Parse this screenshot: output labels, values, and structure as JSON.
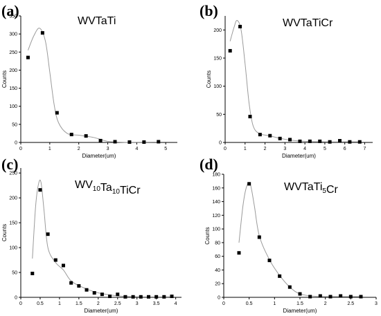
{
  "chart_data": [
    {
      "type": "scatter",
      "panel_label": "(a)",
      "title": "WVTaTi",
      "title_parts": [
        {
          "t": "WVTaTi",
          "sub": false
        }
      ],
      "xlabel": "Diameter(um)",
      "ylabel": "Counts",
      "xlim": [
        0,
        5.4
      ],
      "ylim": [
        0,
        350
      ],
      "xticks": [
        0,
        1,
        2,
        3,
        4,
        5
      ],
      "yticks": [
        0,
        50,
        100,
        150,
        200,
        250,
        300,
        350
      ],
      "points": [
        [
          0.25,
          235
        ],
        [
          0.75,
          303
        ],
        [
          1.25,
          82
        ],
        [
          1.75,
          22
        ],
        [
          2.25,
          18
        ],
        [
          2.75,
          5
        ],
        [
          3.25,
          2
        ],
        [
          3.75,
          1
        ],
        [
          4.25,
          1
        ],
        [
          4.75,
          2
        ]
      ],
      "fit": [
        [
          0.25,
          255
        ],
        [
          0.45,
          295
        ],
        [
          0.65,
          316
        ],
        [
          0.85,
          280
        ],
        [
          1.0,
          195
        ],
        [
          1.15,
          105
        ],
        [
          1.3,
          55
        ],
        [
          1.6,
          25
        ],
        [
          2.0,
          20
        ],
        [
          2.5,
          14
        ],
        [
          3.0,
          3
        ],
        [
          3.5,
          0.5
        ],
        [
          4.0,
          0.5
        ],
        [
          4.75,
          1
        ]
      ]
    },
    {
      "type": "scatter",
      "panel_label": "(b)",
      "title": "WVTaTiCr",
      "title_parts": [
        {
          "t": "WVTaTiCr",
          "sub": false
        }
      ],
      "xlabel": "Diameter(um)",
      "ylabel": "Counts",
      "xlim": [
        0,
        7.4
      ],
      "ylim": [
        0,
        225
      ],
      "xticks": [
        0,
        1,
        2,
        3,
        4,
        5,
        6,
        7
      ],
      "yticks": [
        0,
        50,
        100,
        150,
        200
      ],
      "points": [
        [
          0.25,
          163
        ],
        [
          0.75,
          206
        ],
        [
          1.25,
          46
        ],
        [
          1.75,
          14
        ],
        [
          2.25,
          12
        ],
        [
          2.75,
          7
        ],
        [
          3.25,
          5
        ],
        [
          3.75,
          2
        ],
        [
          4.25,
          2
        ],
        [
          4.75,
          2
        ],
        [
          5.25,
          1
        ],
        [
          5.75,
          3
        ],
        [
          6.25,
          1
        ],
        [
          6.75,
          1
        ]
      ],
      "fit": [
        [
          0.25,
          180
        ],
        [
          0.45,
          205
        ],
        [
          0.6,
          217
        ],
        [
          0.8,
          200
        ],
        [
          1.0,
          140
        ],
        [
          1.2,
          70
        ],
        [
          1.4,
          30
        ],
        [
          1.7,
          16
        ],
        [
          2.2,
          12
        ],
        [
          2.8,
          7
        ],
        [
          3.3,
          4
        ],
        [
          4.0,
          2
        ],
        [
          5.0,
          1
        ],
        [
          6.0,
          1
        ],
        [
          6.75,
          1
        ]
      ]
    },
    {
      "type": "scatter",
      "panel_label": "(c)",
      "title": "WV10Ta10TiCr",
      "title_parts": [
        {
          "t": "WV",
          "sub": false
        },
        {
          "t": "10",
          "sub": true
        },
        {
          "t": "Ta",
          "sub": false
        },
        {
          "t": "10",
          "sub": true
        },
        {
          "t": "TiCr",
          "sub": false
        }
      ],
      "xlabel": "Diameter(um)",
      "ylabel": "Counts",
      "xlim": [
        0,
        4.15
      ],
      "ylim": [
        0,
        260
      ],
      "xticks": [
        0,
        0.5,
        1.0,
        1.5,
        2.0,
        2.5,
        3.0,
        3.5,
        4.0
      ],
      "ytick_step": 50,
      "yticks": [
        0,
        50,
        100,
        150,
        200,
        250
      ],
      "points": [
        [
          0.3,
          48
        ],
        [
          0.5,
          216
        ],
        [
          0.7,
          127
        ],
        [
          0.9,
          75
        ],
        [
          1.1,
          64
        ],
        [
          1.3,
          29
        ],
        [
          1.5,
          23
        ],
        [
          1.7,
          15
        ],
        [
          1.9,
          9
        ],
        [
          2.1,
          6
        ],
        [
          2.3,
          2
        ],
        [
          2.5,
          6
        ],
        [
          2.7,
          1
        ],
        [
          2.9,
          1
        ],
        [
          3.1,
          1
        ],
        [
          3.3,
          1
        ],
        [
          3.5,
          1
        ],
        [
          3.7,
          1
        ],
        [
          3.9,
          2
        ]
      ],
      "fit": [
        [
          0.3,
          78
        ],
        [
          0.38,
          180
        ],
        [
          0.45,
          225
        ],
        [
          0.52,
          232
        ],
        [
          0.6,
          175
        ],
        [
          0.7,
          100
        ],
        [
          0.9,
          70
        ],
        [
          1.1,
          55
        ],
        [
          1.3,
          33
        ],
        [
          1.6,
          20
        ],
        [
          2.0,
          9
        ],
        [
          2.5,
          3
        ],
        [
          3.0,
          1
        ],
        [
          3.9,
          1
        ]
      ]
    },
    {
      "type": "scatter",
      "panel_label": "(d)",
      "title": "WVTaTi5Cr",
      "title_parts": [
        {
          "t": "WVTaTi",
          "sub": false
        },
        {
          "t": "5",
          "sub": true
        },
        {
          "t": "Cr",
          "sub": false
        }
      ],
      "xlabel": "Diameter(um)",
      "ylabel": "Counts",
      "xlim": [
        0,
        3.0
      ],
      "ylim": [
        0,
        180
      ],
      "xticks": [
        0,
        0.5,
        1.0,
        1.5,
        2.0,
        2.5,
        3.0
      ],
      "yticks": [
        0,
        20,
        40,
        60,
        80,
        100,
        120,
        140,
        160,
        180
      ],
      "points": [
        [
          0.3,
          65
        ],
        [
          0.5,
          166
        ],
        [
          0.7,
          88
        ],
        [
          0.9,
          54
        ],
        [
          1.1,
          31
        ],
        [
          1.3,
          15
        ],
        [
          1.5,
          5
        ],
        [
          1.7,
          1
        ],
        [
          1.9,
          2
        ],
        [
          2.1,
          1
        ],
        [
          2.3,
          2
        ],
        [
          2.5,
          1
        ],
        [
          2.7,
          1
        ]
      ],
      "fit": [
        [
          0.3,
          80
        ],
        [
          0.38,
          135
        ],
        [
          0.45,
          162
        ],
        [
          0.52,
          166
        ],
        [
          0.6,
          135
        ],
        [
          0.7,
          90
        ],
        [
          0.9,
          55
        ],
        [
          1.1,
          32
        ],
        [
          1.3,
          15
        ],
        [
          1.5,
          5
        ],
        [
          1.8,
          1.5
        ],
        [
          2.2,
          1
        ],
        [
          2.7,
          1
        ]
      ]
    }
  ]
}
